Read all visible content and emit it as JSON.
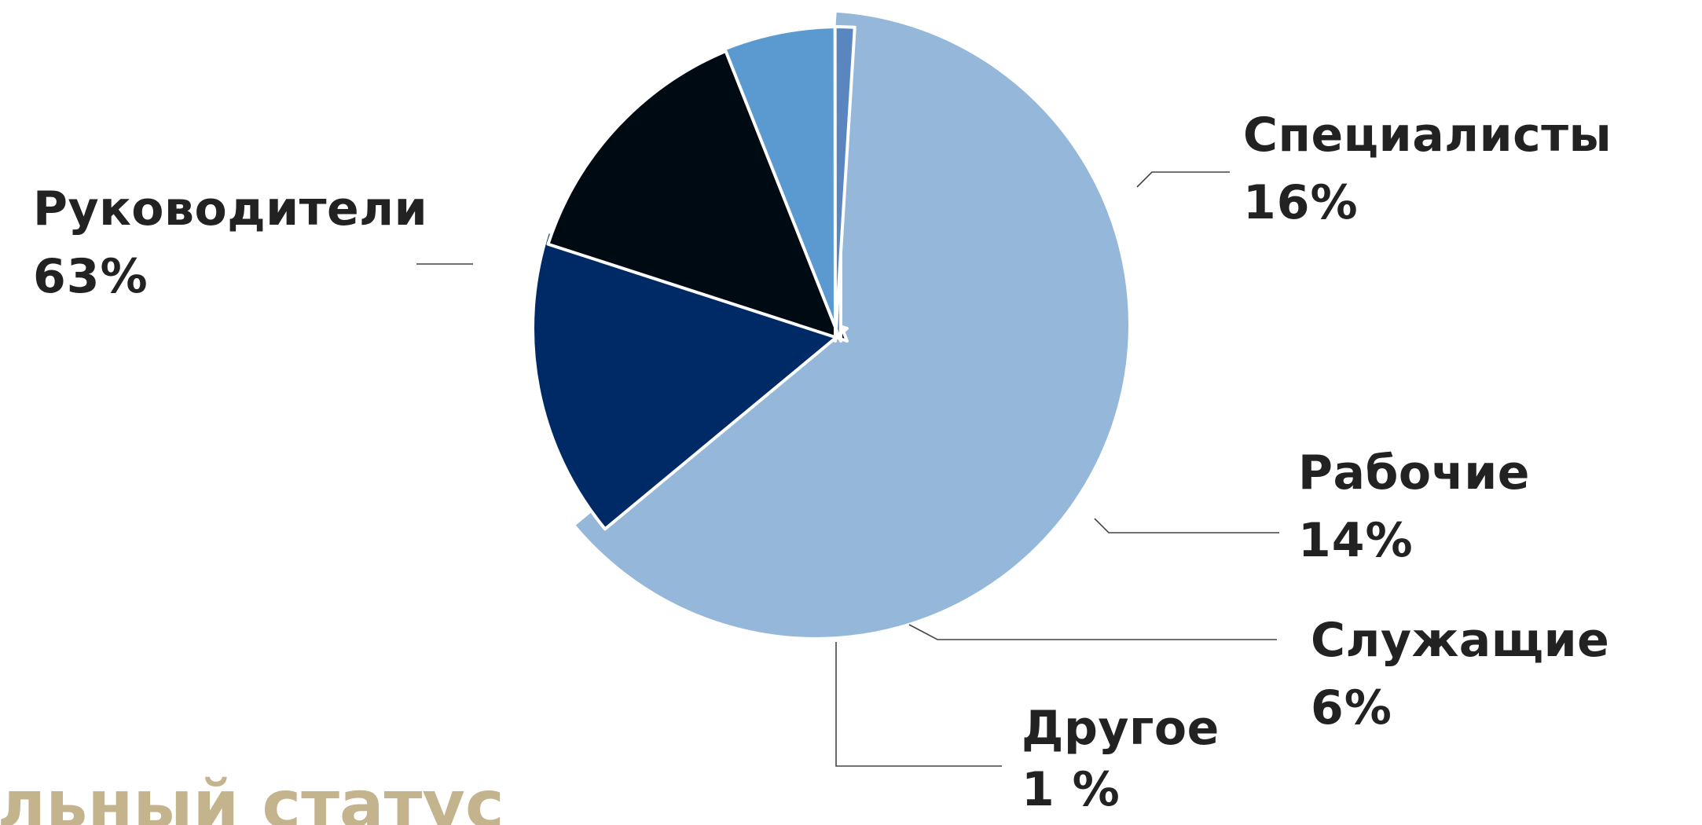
{
  "chart_data": {
    "type": "pie",
    "title": "",
    "categories": [
      "Руководители",
      "Специалисты",
      "Рабочие",
      "Служащие",
      "Другое"
    ],
    "values": [
      63,
      16,
      14,
      6,
      1
    ],
    "value_labels": [
      "63%",
      "16%",
      "14%",
      "6%",
      "1 %"
    ],
    "colors": [
      "#95b8da",
      "#002a66",
      "#000a12",
      "#5b9ad0",
      "#5a86c0"
    ],
    "legend": "none",
    "exploded": true
  },
  "footer": {
    "title": "альный статус",
    "color": "#c4b48e"
  },
  "theme": {
    "text_color": "#222222",
    "leader_color": "#444444",
    "separator_color": "#ffffff"
  }
}
